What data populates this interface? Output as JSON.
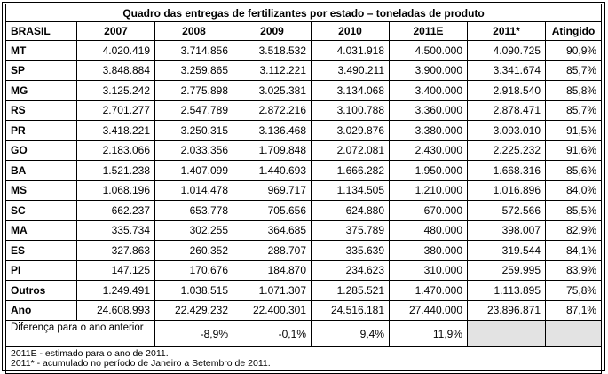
{
  "table": {
    "title": "Quadro das entregas de fertilizantes por estado – toneladas de produto",
    "headers": [
      "BRASIL",
      "2007",
      "2008",
      "2009",
      "2010",
      "2011E",
      "2011*",
      "Atingido"
    ],
    "rows": [
      [
        "MT",
        "4.020.419",
        "3.714.856",
        "3.518.532",
        "4.031.918",
        "4.500.000",
        "4.090.725",
        "90,9%"
      ],
      [
        "SP",
        "3.848.884",
        "3.259.865",
        "3.112.221",
        "3.490.211",
        "3.900.000",
        "3.341.674",
        "85,7%"
      ],
      [
        "MG",
        "3.125.242",
        "2.775.898",
        "3.025.381",
        "3.134.068",
        "3.400.000",
        "2.918.540",
        "85,8%"
      ],
      [
        "RS",
        "2.701.277",
        "2.547.789",
        "2.872.216",
        "3.100.788",
        "3.360.000",
        "2.878.471",
        "85,7%"
      ],
      [
        "PR",
        "3.418.221",
        "3.250.315",
        "3.136.468",
        "3.029.876",
        "3.380.000",
        "3.093.010",
        "91,5%"
      ],
      [
        "GO",
        "2.183.066",
        "2.033.356",
        "1.709.848",
        "2.072.081",
        "2.430.000",
        "2.225.232",
        "91,6%"
      ],
      [
        "BA",
        "1.521.238",
        "1.407.099",
        "1.440.693",
        "1.666.282",
        "1.950.000",
        "1.668.316",
        "85,6%"
      ],
      [
        "MS",
        "1.068.196",
        "1.014.478",
        "969.717",
        "1.134.505",
        "1.210.000",
        "1.016.896",
        "84,0%"
      ],
      [
        "SC",
        "662.237",
        "653.778",
        "705.656",
        "624.880",
        "670.000",
        "572.566",
        "85,5%"
      ],
      [
        "MA",
        "335.734",
        "302.255",
        "364.685",
        "375.789",
        "480.000",
        "398.007",
        "82,9%"
      ],
      [
        "ES",
        "327.863",
        "260.352",
        "288.707",
        "335.639",
        "380.000",
        "319.544",
        "84,1%"
      ],
      [
        "PI",
        "147.125",
        "170.676",
        "184.870",
        "234.623",
        "310.000",
        "259.995",
        "83,9%"
      ],
      [
        "Outros",
        "1.249.491",
        "1.038.515",
        "1.071.307",
        "1.285.521",
        "1.470.000",
        "1.113.895",
        "75,8%"
      ],
      [
        "Ano",
        "24.608.993",
        "22.429.232",
        "22.400.301",
        "24.516.181",
        "27.440.000",
        "23.896.871",
        "87,1%"
      ]
    ],
    "diff": {
      "label": "Diferença para o  ano anterior",
      "values": [
        "",
        "-8,9%",
        "-0,1%",
        "9,4%",
        "11,9%"
      ]
    },
    "notes": [
      "2011E - estimado para o ano de 2011.",
      "2011* - acumulado no período de Janeiro a Setembro de 2011."
    ]
  }
}
